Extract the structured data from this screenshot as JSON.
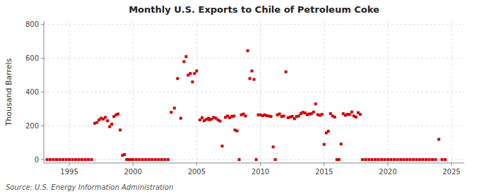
{
  "chart_data": {
    "type": "scatter",
    "title": "Monthly U.S. Exports to Chile of Petroleum Coke",
    "ylabel": "Thousand Barrels",
    "source": "Source: U.S. Energy Information Administration",
    "xlim": [
      1993.0,
      2026.0
    ],
    "ylim": [
      -20,
      820
    ],
    "xticks": [
      1995,
      2000,
      2005,
      2010,
      2015,
      2020,
      2025
    ],
    "yticks": [
      0,
      200,
      400,
      600,
      800
    ],
    "grid": true,
    "color": "#cc0000",
    "marker": "square",
    "x": [
      1993.25,
      1993.5,
      1993.75,
      1994.0,
      1994.25,
      1994.5,
      1994.75,
      1995.0,
      1995.25,
      1995.5,
      1995.75,
      1996.0,
      1996.25,
      1996.5,
      1996.75,
      1997.0,
      1997.17,
      1997.33,
      1997.5,
      1997.67,
      1997.83,
      1998.0,
      1998.17,
      1998.33,
      1998.5,
      1998.67,
      1998.83,
      1999.0,
      1999.17,
      1999.33,
      1999.5,
      1999.67,
      1999.83,
      2000.0,
      2000.25,
      2000.5,
      2000.75,
      2001.0,
      2001.25,
      2001.5,
      2001.75,
      2002.0,
      2002.25,
      2002.5,
      2002.75,
      2003.0,
      2003.25,
      2003.5,
      2003.75,
      2004.0,
      2004.17,
      2004.33,
      2004.5,
      2004.67,
      2004.83,
      2005.0,
      2005.25,
      2005.42,
      2005.58,
      2005.75,
      2005.92,
      2006.0,
      2006.17,
      2006.33,
      2006.5,
      2006.67,
      2006.83,
      2007.0,
      2007.25,
      2007.42,
      2007.58,
      2007.75,
      2007.92,
      2008.0,
      2008.17,
      2008.33,
      2008.5,
      2008.67,
      2008.83,
      2009.0,
      2009.17,
      2009.33,
      2009.5,
      2009.67,
      2009.83,
      2010.0,
      2010.17,
      2010.33,
      2010.5,
      2010.67,
      2010.83,
      2011.0,
      2011.17,
      2011.33,
      2011.5,
      2011.67,
      2011.83,
      2012.0,
      2012.17,
      2012.33,
      2012.5,
      2012.67,
      2012.83,
      2013.0,
      2013.17,
      2013.33,
      2013.5,
      2013.67,
      2013.83,
      2014.0,
      2014.17,
      2014.33,
      2014.5,
      2014.67,
      2014.83,
      2015.0,
      2015.17,
      2015.33,
      2015.5,
      2015.67,
      2015.83,
      2016.0,
      2016.17,
      2016.33,
      2016.5,
      2016.67,
      2016.83,
      2017.0,
      2017.17,
      2017.33,
      2017.5,
      2017.67,
      2017.83,
      2018.0,
      2018.25,
      2018.5,
      2018.75,
      2019.0,
      2019.25,
      2019.5,
      2019.75,
      2020.0,
      2020.25,
      2020.5,
      2020.75,
      2021.0,
      2021.25,
      2021.5,
      2021.75,
      2022.0,
      2022.25,
      2022.5,
      2022.75,
      2023.0,
      2023.25,
      2023.5,
      2023.75,
      2024.0,
      2024.25,
      2024.5
    ],
    "values": [
      0,
      0,
      0,
      0,
      0,
      0,
      0,
      0,
      0,
      0,
      0,
      0,
      0,
      0,
      0,
      215,
      220,
      235,
      245,
      240,
      250,
      230,
      195,
      210,
      255,
      265,
      270,
      175,
      25,
      30,
      0,
      0,
      0,
      0,
      0,
      0,
      0,
      0,
      0,
      0,
      0,
      0,
      0,
      0,
      0,
      280,
      305,
      480,
      245,
      580,
      610,
      500,
      510,
      460,
      510,
      525,
      235,
      248,
      230,
      238,
      245,
      235,
      240,
      250,
      245,
      235,
      228,
      80,
      250,
      258,
      248,
      255,
      258,
      175,
      170,
      0,
      265,
      270,
      258,
      645,
      480,
      525,
      475,
      0,
      265,
      265,
      260,
      265,
      260,
      258,
      255,
      75,
      0,
      265,
      270,
      255,
      258,
      520,
      248,
      252,
      256,
      242,
      255,
      258,
      272,
      280,
      276,
      266,
      270,
      272,
      282,
      330,
      266,
      262,
      268,
      90,
      158,
      168,
      272,
      258,
      252,
      0,
      0,
      92,
      272,
      262,
      268,
      267,
      282,
      258,
      252,
      278,
      268,
      0,
      0,
      0,
      0,
      0,
      0,
      0,
      0,
      0,
      0,
      0,
      0,
      0,
      0,
      0,
      0,
      0,
      0,
      0,
      0,
      0,
      0,
      0,
      0,
      120,
      0,
      0
    ]
  }
}
